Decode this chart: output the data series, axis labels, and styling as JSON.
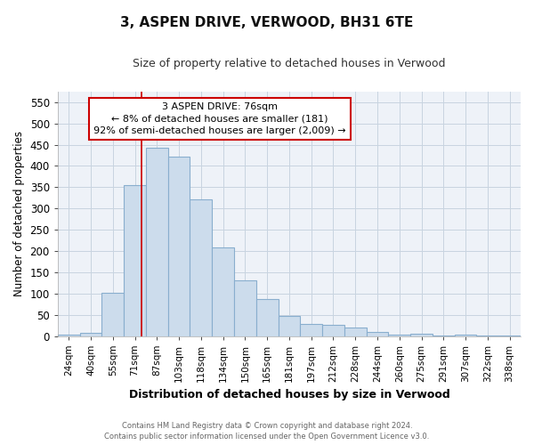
{
  "title": "3, ASPEN DRIVE, VERWOOD, BH31 6TE",
  "subtitle": "Size of property relative to detached houses in Verwood",
  "xlabel": "Distribution of detached houses by size in Verwood",
  "ylabel": "Number of detached properties",
  "footer_line1": "Contains HM Land Registry data © Crown copyright and database right 2024.",
  "footer_line2": "Contains public sector information licensed under the Open Government Licence v3.0.",
  "categories": [
    "24sqm",
    "40sqm",
    "55sqm",
    "71sqm",
    "87sqm",
    "103sqm",
    "118sqm",
    "134sqm",
    "150sqm",
    "165sqm",
    "181sqm",
    "197sqm",
    "212sqm",
    "228sqm",
    "244sqm",
    "260sqm",
    "275sqm",
    "291sqm",
    "307sqm",
    "322sqm",
    "338sqm"
  ],
  "values": [
    3,
    7,
    102,
    355,
    443,
    422,
    322,
    209,
    130,
    86,
    48,
    29,
    26,
    19,
    10,
    3,
    5,
    2,
    3,
    1,
    1
  ],
  "bar_color": "#ccdcec",
  "bar_edge_color": "#89aece",
  "grid_color": "#c8d4e0",
  "background_color": "#ffffff",
  "plot_bg_color": "#eef2f8",
  "annotation_text": "3 ASPEN DRIVE: 76sqm\n← 8% of detached houses are smaller (181)\n92% of semi-detached houses are larger (2,009) →",
  "annotation_box_color": "#ffffff",
  "annotation_box_edge": "#cc0000",
  "marker_line_color": "#cc0000",
  "ylim": [
    0,
    575
  ],
  "yticks": [
    0,
    50,
    100,
    150,
    200,
    250,
    300,
    350,
    400,
    450,
    500,
    550
  ]
}
